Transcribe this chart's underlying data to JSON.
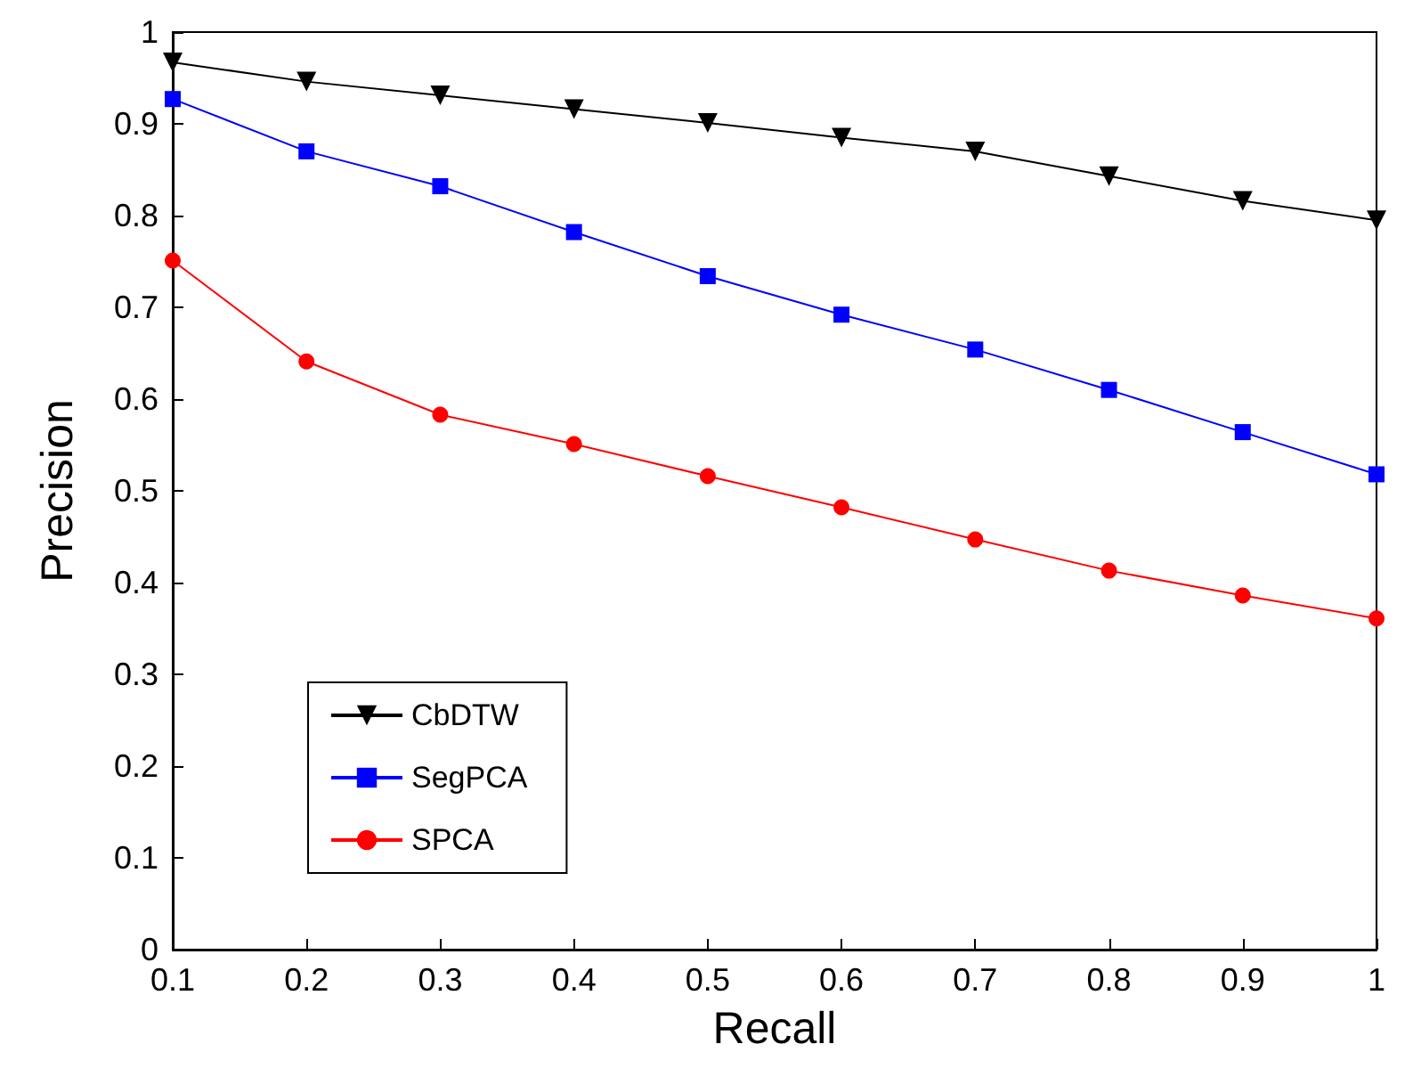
{
  "chart_data": {
    "type": "line",
    "xlabel": "Recall",
    "ylabel": "Precision",
    "x": [
      0.1,
      0.2,
      0.3,
      0.4,
      0.5,
      0.6,
      0.7,
      0.8,
      0.9,
      1
    ],
    "series": [
      {
        "name": "CbDTW",
        "color": "#000000",
        "marker": "triangle",
        "values": [
          0.967,
          0.946,
          0.931,
          0.916,
          0.901,
          0.885,
          0.87,
          0.843,
          0.816,
          0.795
        ]
      },
      {
        "name": "SegPCA",
        "color": "#0000ff",
        "marker": "square",
        "values": [
          0.927,
          0.87,
          0.832,
          0.782,
          0.734,
          0.692,
          0.654,
          0.61,
          0.564,
          0.518
        ]
      },
      {
        "name": "SPCA",
        "color": "#ff0000",
        "marker": "circle",
        "values": [
          0.751,
          0.641,
          0.583,
          0.551,
          0.516,
          0.482,
          0.447,
          0.413,
          0.386,
          0.361
        ]
      }
    ],
    "xlim": [
      0.1,
      1
    ],
    "xticks": [
      0.1,
      0.2,
      0.3,
      0.4,
      0.5,
      0.6,
      0.7,
      0.8,
      0.9,
      1
    ],
    "ylim": [
      0,
      1
    ],
    "yticks": [
      0,
      0.1,
      0.2,
      0.3,
      0.4,
      0.5,
      0.6,
      0.7,
      0.8,
      0.9,
      1
    ],
    "legend": "bottom left",
    "grid": false,
    "line_style": "solid"
  }
}
